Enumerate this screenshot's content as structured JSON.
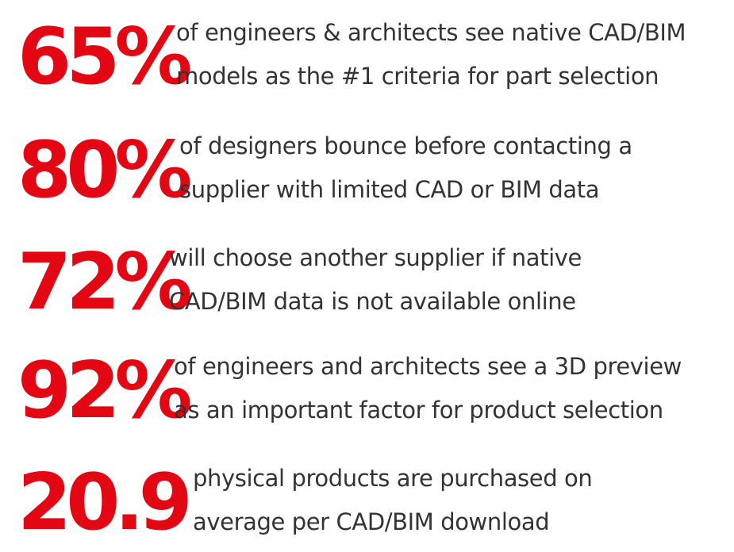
{
  "colors": {
    "accent": "#e30613",
    "text": "#333333",
    "background": "#ffffff"
  },
  "stats": [
    {
      "value": "65%",
      "lines": [
        "of engineers & architects see native CAD/BIM",
        "models as the #1 criteria for part selection"
      ]
    },
    {
      "value": "80%",
      "lines": [
        "of designers bounce before contacting a",
        "supplier with limited CAD or BIM data"
      ]
    },
    {
      "value": "72%",
      "lines": [
        "will choose another supplier if native",
        "CAD/BIM data is not available online"
      ]
    },
    {
      "value": "92%",
      "lines": [
        "of engineers and architects see a 3D preview",
        "as an important factor for product selection"
      ]
    },
    {
      "value": "20.9",
      "lines": [
        "physical products are purchased on",
        "average per CAD/BIM download"
      ]
    }
  ]
}
